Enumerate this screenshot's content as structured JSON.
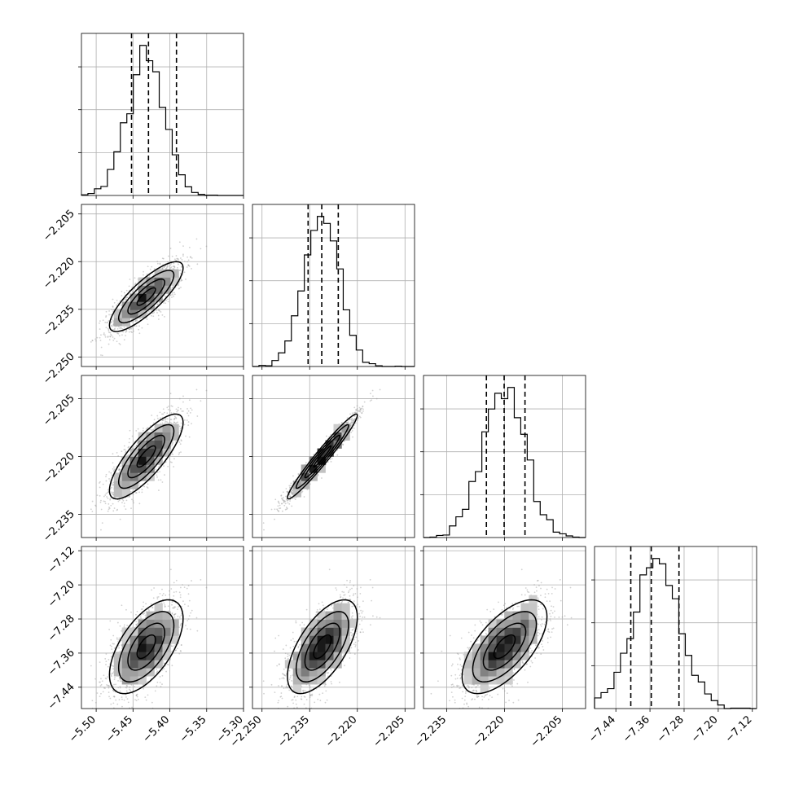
{
  "chart_data": {
    "type": "corner",
    "grid": true,
    "style": {
      "hist_color": "#000000",
      "quantile_line_style": "dashed",
      "scatter_color": "#9a9a9a",
      "contour_color": "#000000",
      "density_colormap": "greys"
    },
    "parameters": [
      {
        "mean": -5.432,
        "sd": 0.025,
        "range": [
          -5.52,
          -5.3
        ],
        "ticks": [
          -5.5,
          -5.45,
          -5.4,
          -5.35,
          -5.3
        ],
        "tick_labels": [
          "−5.50",
          "−5.45",
          "−5.40",
          "−5.35",
          "−5.30"
        ],
        "quantiles": [
          -5.452,
          -5.429,
          -5.391
        ]
      },
      {
        "mean": -2.231,
        "sd": 0.0055,
        "range": [
          -2.253,
          -2.202
        ],
        "ticks": [
          -2.25,
          -2.235,
          -2.22,
          -2.205
        ],
        "tick_labels": [
          "−2.250",
          "−2.235",
          "−2.220",
          "−2.205"
        ],
        "quantiles": [
          -2.2355,
          -2.2312,
          -2.226
        ]
      },
      {
        "mean": -2.22,
        "sd": 0.0055,
        "range": [
          -2.241,
          -2.199
        ],
        "ticks": [
          -2.235,
          -2.22,
          -2.205
        ],
        "tick_labels": [
          "−2.235",
          "−2.220",
          "−2.205"
        ],
        "quantiles": [
          -2.2247,
          -2.2201,
          -2.2147
        ]
      },
      {
        "mean": -7.345,
        "sd": 0.055,
        "range": [
          -7.49,
          -7.11
        ],
        "ticks": [
          -7.44,
          -7.36,
          -7.28,
          -7.2,
          -7.12
        ],
        "tick_labels": [
          "−7.44",
          "−7.36",
          "−7.28",
          "−7.20",
          "−7.12"
        ],
        "quantiles": [
          -7.405,
          -7.357,
          -7.292
        ]
      }
    ],
    "correlations": {
      "1,0": 0.82,
      "2,0": 0.8,
      "2,1": 0.97,
      "3,0": 0.6,
      "3,1": 0.63,
      "3,2": 0.64
    }
  }
}
